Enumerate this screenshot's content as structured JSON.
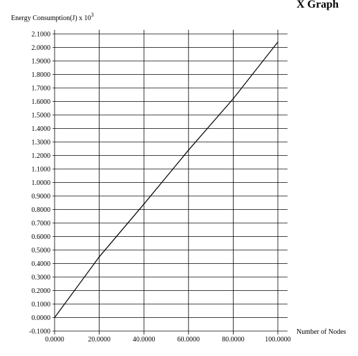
{
  "window": {
    "title": "X Graph"
  },
  "chart_data": {
    "type": "line",
    "ylabel": "Energy Consumption(J) x 10",
    "ylabel_exponent": "3",
    "xlabel": "Number of Nodes",
    "xlim": [
      0,
      100
    ],
    "ylim": [
      -0.1,
      2.1
    ],
    "grid": true,
    "x_ticks": [
      0,
      20,
      40,
      60,
      80,
      100
    ],
    "x_tick_labels": [
      "0.0000",
      "20.0000",
      "40.0000",
      "60.0000",
      "80.0000",
      "100.0000"
    ],
    "y_ticks": [
      -0.1,
      0.0,
      0.1,
      0.2,
      0.3,
      0.4,
      0.5,
      0.6,
      0.7,
      0.8,
      0.9,
      1.0,
      1.1,
      1.2,
      1.3,
      1.4,
      1.5,
      1.6,
      1.7,
      1.8,
      1.9,
      2.0,
      2.1
    ],
    "y_tick_labels": [
      "-0.1000",
      "0.0000",
      "0.1000",
      "0.2000",
      "0.3000",
      "0.4000",
      "0.5000",
      "0.6000",
      "0.7000",
      "0.8000",
      "0.9000",
      "1.0000",
      "1.1000",
      "1.2000",
      "1.3000",
      "1.4000",
      "1.5000",
      "1.6000",
      "1.7000",
      "1.8000",
      "1.9000",
      "2.0000",
      "2.1000"
    ],
    "series": [
      {
        "x": [
          0,
          20,
          40,
          60,
          80,
          100
        ],
        "values": [
          0.0,
          0.45,
          0.84,
          1.24,
          1.62,
          2.04
        ]
      }
    ]
  }
}
